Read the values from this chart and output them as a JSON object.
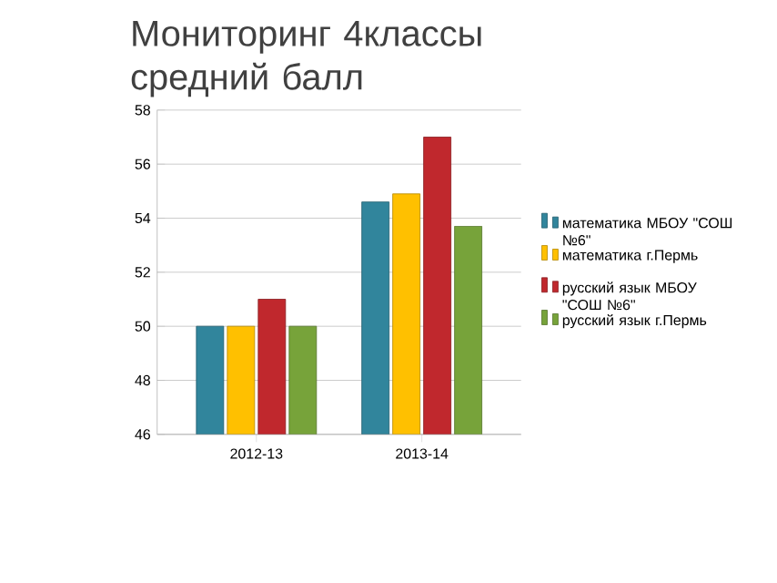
{
  "chart_data": {
    "type": "bar",
    "title": "Мониторинг 4классы\nсредний балл",
    "categories": [
      "2012-13",
      "2013-14"
    ],
    "series": [
      {
        "name": "математика МБОУ \"СОШ №6\"",
        "color": "#31859c",
        "values": [
          50,
          54.6
        ]
      },
      {
        "name": "математика г.Пермь",
        "color": "#ffc000",
        "values": [
          50,
          54.9
        ]
      },
      {
        "name": "русский язык МБОУ \"СОШ №6\"",
        "color": "#c0282d",
        "values": [
          51,
          57
        ]
      },
      {
        "name": "русский язык г.Пермь",
        "color": "#77a33a",
        "values": [
          50,
          53.7
        ]
      }
    ],
    "ylim": [
      46,
      58
    ],
    "yticks": [
      46,
      48,
      50,
      52,
      54,
      56,
      58
    ],
    "grid": "y",
    "legend": "right"
  }
}
